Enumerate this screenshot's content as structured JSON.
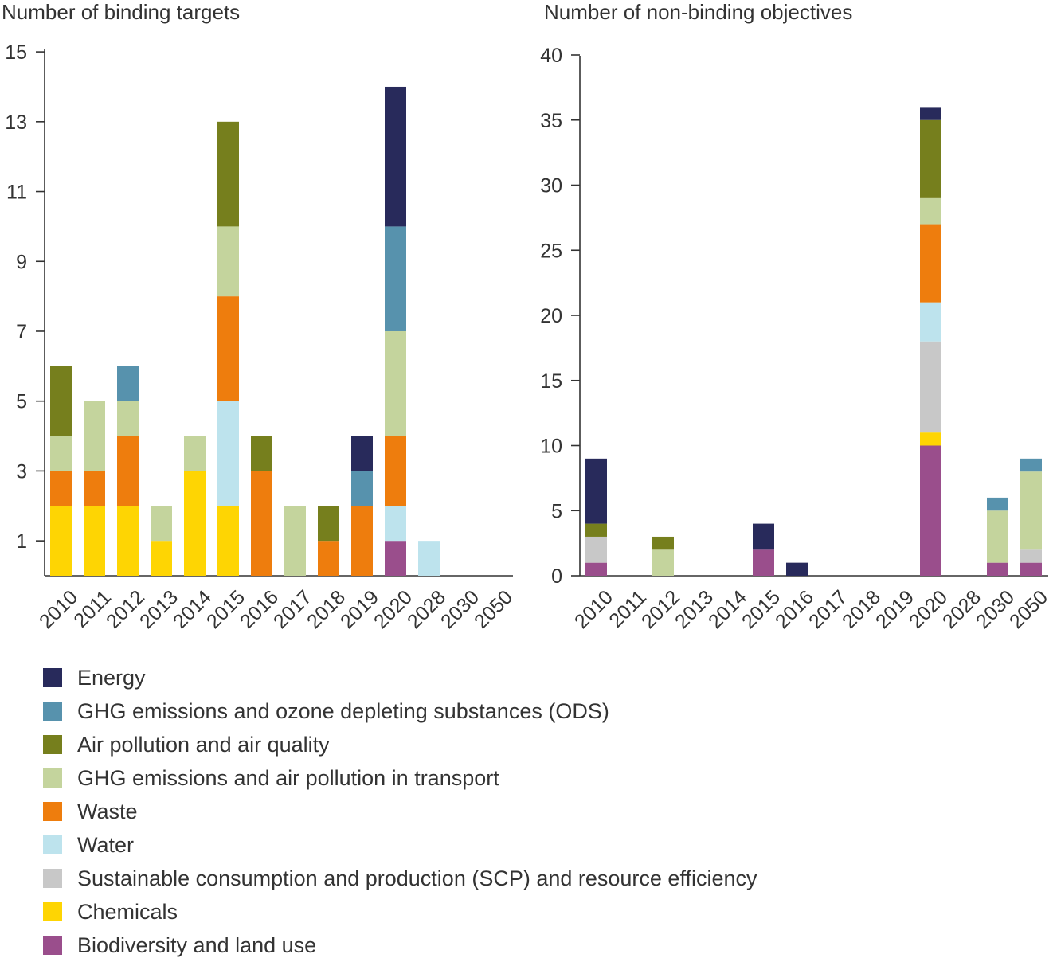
{
  "colors": {
    "Energy": "#282a5b",
    "GHG emissions and ozone depleting substances (ODS)": "#5792ad",
    "Air pollution and air quality": "#767f1d",
    "GHG emissions and air pollution in transport": "#c4d49d",
    "Waste": "#ee7d0d",
    "Water": "#bde3ed",
    "Sustainable consumption and production (SCP) and resource efficiency": "#c8c8c8",
    "Chemicals": "#fed503",
    "Biodiversity and land use": "#9a4e8c"
  },
  "legend": [
    {
      "label": "Energy",
      "color": "#282a5b"
    },
    {
      "label": "GHG emissions and ozone depleting substances (ODS)",
      "color": "#5792ad"
    },
    {
      "label": "Air pollution and air quality",
      "color": "#767f1d"
    },
    {
      "label": "GHG emissions and air pollution in transport",
      "color": "#c4d49d"
    },
    {
      "label": "Waste",
      "color": "#ee7d0d"
    },
    {
      "label": "Water",
      "color": "#bde3ed"
    },
    {
      "label": "Sustainable consumption and production (SCP) and resource efficiency",
      "color": "#c8c8c8"
    },
    {
      "label": "Chemicals",
      "color": "#fed503"
    },
    {
      "label": "Biodiversity and land use",
      "color": "#9a4e8c"
    }
  ],
  "chart_data": [
    {
      "type": "bar",
      "stacked": true,
      "title": "Number of binding targets",
      "categories": [
        "2010",
        "2011",
        "2012",
        "2013",
        "2014",
        "2015",
        "2016",
        "2017",
        "2018",
        "2019",
        "2020",
        "2028",
        "2030",
        "2050"
      ],
      "yticks": [
        "1",
        "3",
        "5",
        "7",
        "9",
        "11",
        "13",
        "15"
      ],
      "ylim": [
        0,
        15
      ],
      "grid": false,
      "legend_position": "bottom",
      "series": [
        {
          "name": "Biodiversity and land use",
          "values": [
            0,
            0,
            0,
            0,
            0,
            0,
            0,
            0,
            0,
            0,
            1,
            0,
            0,
            0
          ]
        },
        {
          "name": "Chemicals",
          "values": [
            2,
            2,
            2,
            1,
            3,
            2,
            0,
            0,
            0,
            0,
            0,
            0,
            0,
            0
          ]
        },
        {
          "name": "Sustainable consumption and production (SCP) and resource efficiency",
          "values": [
            0,
            0,
            0,
            0,
            0,
            0,
            0,
            0,
            0,
            0,
            0,
            0,
            0,
            0
          ]
        },
        {
          "name": "Water",
          "values": [
            0,
            0,
            0,
            0,
            0,
            3,
            0,
            0,
            0,
            0,
            1,
            1,
            0,
            0
          ]
        },
        {
          "name": "Waste",
          "values": [
            1,
            1,
            2,
            0,
            0,
            3,
            3,
            0,
            1,
            2,
            2,
            0,
            0,
            0
          ]
        },
        {
          "name": "GHG emissions and air pollution in transport",
          "values": [
            1,
            2,
            1,
            1,
            1,
            2,
            0,
            2,
            0,
            0,
            3,
            0,
            0,
            0
          ]
        },
        {
          "name": "Air pollution and air quality",
          "values": [
            2,
            0,
            0,
            0,
            0,
            3,
            1,
            0,
            1,
            0,
            0,
            0,
            0,
            0
          ]
        },
        {
          "name": "GHG emissions and ozone depleting substances (ODS)",
          "values": [
            0,
            0,
            1,
            0,
            0,
            0,
            0,
            0,
            0,
            1,
            3,
            0,
            0,
            0
          ]
        },
        {
          "name": "Energy",
          "values": [
            0,
            0,
            0,
            0,
            0,
            0,
            0,
            0,
            0,
            1,
            4,
            0,
            0,
            0
          ]
        }
      ]
    },
    {
      "type": "bar",
      "stacked": true,
      "title": "Number of non-binding objectives",
      "categories": [
        "2010",
        "2011",
        "2012",
        "2013",
        "2014",
        "2015",
        "2016",
        "2017",
        "2018",
        "2019",
        "2020",
        "2028",
        "2030",
        "2050"
      ],
      "yticks": [
        "0",
        "5",
        "10",
        "15",
        "20",
        "25",
        "30",
        "35",
        "40"
      ],
      "ylim": [
        0,
        40
      ],
      "grid": false,
      "legend_position": "bottom",
      "series": [
        {
          "name": "Biodiversity and land use",
          "values": [
            1,
            0,
            0,
            0,
            0,
            2,
            0,
            0,
            0,
            0,
            10,
            0,
            1,
            1
          ]
        },
        {
          "name": "Chemicals",
          "values": [
            0,
            0,
            0,
            0,
            0,
            0,
            0,
            0,
            0,
            0,
            1,
            0,
            0,
            0
          ]
        },
        {
          "name": "Sustainable consumption and production (SCP) and resource efficiency",
          "values": [
            2,
            0,
            0,
            0,
            0,
            0,
            0,
            0,
            0,
            0,
            7,
            0,
            0,
            1
          ]
        },
        {
          "name": "Water",
          "values": [
            0,
            0,
            0,
            0,
            0,
            0,
            0,
            0,
            0,
            0,
            3,
            0,
            0,
            0
          ]
        },
        {
          "name": "Waste",
          "values": [
            0,
            0,
            0,
            0,
            0,
            0,
            0,
            0,
            0,
            0,
            6,
            0,
            0,
            0
          ]
        },
        {
          "name": "GHG emissions and air pollution in transport",
          "values": [
            0,
            0,
            2,
            0,
            0,
            0,
            0,
            0,
            0,
            0,
            2,
            0,
            4,
            6
          ]
        },
        {
          "name": "Air pollution and air quality",
          "values": [
            1,
            0,
            1,
            0,
            0,
            0,
            0,
            0,
            0,
            0,
            6,
            0,
            0,
            0
          ]
        },
        {
          "name": "GHG emissions and ozone depleting substances (ODS)",
          "values": [
            0,
            0,
            0,
            0,
            0,
            0,
            0,
            0,
            0,
            0,
            0,
            0,
            1,
            1
          ]
        },
        {
          "name": "Energy",
          "values": [
            5,
            0,
            0,
            0,
            0,
            2,
            1,
            0,
            0,
            0,
            1,
            0,
            0,
            0
          ]
        }
      ]
    }
  ]
}
